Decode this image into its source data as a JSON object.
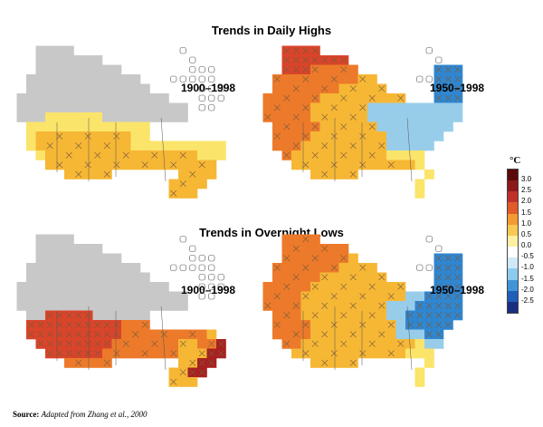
{
  "sections": [
    {
      "title": "Trends in Daily Highs",
      "panels": [
        {
          "period": "1900–1998",
          "grid": [
            "..........................",
            "...gggg...........,.......",
            "...ggggggg.........,......",
            "...ggggggggg.......;;;....",
            "..gggggggggggg...,,;;;....",
            "..ggggggggggggg.....;;;...",
            ".gggggggggggggggg...;;;...",
            ".gggggggggggggggggg.;;....",
            ".gggllllllggggggggg.......",
            "..lllllllllllll...........",
            "..lmmmmmmmmmmll...........",
            "..lmmmmmmmmmmllllllllll...",
            "...lmmmmmmmmmmmmmmmmlll...",
            "....mmmmmmmmmmmmmmmmmm....",
            "......mmmmm.......mmmm....",
            ".................mmmm.....",
            ".................mmm......",
            ".........................."
          ]
        },
        {
          "period": "1950–1998",
          "grid": [
            "..........................",
            "...HHHH...........,.......",
            "...HHHHHHH.........,......",
            "...HHHhhhhh........BBB....",
            "..hhhhhhhhhmm....,,BBB....",
            "..hhhhhhhmmmmm.....BBB....",
            ".hhhhhhmmmmmmmmm...BBB....",
            ".hhhhhmmmmmmbbbbbbbbbb....",
            ".hhhhhmmmmmmbbbbbbbbbb....",
            "..hhhhhmmmmmmbbbbbbbb.....",
            "..hhhhmmmmmmmmbbbbbb......",
            "..hhhmmmmmmmmmbbbbb.......",
            "...hmmmmmmmmmmllll........",
            "....mmmmmmmmmmmmml........",
            "......mmmmm.......l.......",
            ".................l........",
            ".................l........",
            ".........................."
          ]
        }
      ]
    },
    {
      "title": "Trends in Overnight Lows",
      "panels": [
        {
          "period": "1900–1998",
          "grid": [
            "..........................",
            "...gggg...........,.......",
            "...ggggggg.........,......",
            "...ggggggggg.......;;;....",
            "..gggggggggggg...,,;;;....",
            "..ggggggggggggg.....;;;...",
            ".gggggggggggggggg...;;;...",
            ".gggggggggggggggggg.;;....",
            ".gggggggggggggggggg.......",
            "..ggHHHHHgggggg...........",
            "..HHHHHHHHHHhhh...........",
            "..HHHHHHHHHHhhhhhhhhhm....",
            "...HHHHHHHHhhhhhhhmmhhR...",
            "....HHHHHHhhhhhhhhmmmRR...",
            "......hhhhh.......mmRR....",
            ".................mmRR.....",
            ".................mmm......",
            ".........................."
          ]
        },
        {
          "period": "1950–1998",
          "grid": [
            "..........................",
            "...hhhh...........,.......",
            "...hhhhhhh.........,......",
            "...hhhhhhhm........BBB....",
            "..hhhhhhhmmmm....,,BBB....",
            "..hhhhhmmmmmmm.....BBB....",
            ".hhhhhmmmmmmmmmm...BBB....",
            ".hhhhmmmmmmmmmmmbbBBBB....",
            ".hhhhmmmmmmmmmbbbBBBBB....",
            "..hhhmmmmmmmmmbbBBBBBB....",
            "..hhhhmmmmmmmmmbBBBBB.....",
            "..hhhhmmmmmmmmmbbbBB......",
            "...hhmmmmmmmmmmmmlbb......",
            "....mmmmmmmmmmmmlll.......",
            "......mmmmm.......l.......",
            ".................l........",
            ".................l........",
            ".........................."
          ]
        }
      ]
    }
  ],
  "colors": {
    "g": "#c8c8c8",
    "l": "#fbe46a",
    "m": "#f6b735",
    "h": "#ec7a2a",
    "H": "#d9442a",
    "R": "#a82020",
    "b": "#98cdea",
    "B": "#2f86d1",
    "w": "#ffffff",
    "outline": "#555555",
    "hatch": "#7a5a3a"
  },
  "legend": {
    "unit": "°C",
    "labels": [
      "3.0",
      "2.5",
      "2.0",
      "1.5",
      "1.0",
      "0.5",
      "0.0",
      "-0.5",
      "-1.0",
      "-1.5",
      "-2.0",
      "-2.5"
    ],
    "colors": [
      "#5a0a0a",
      "#8b1a1a",
      "#c0302a",
      "#e05a2a",
      "#f39a35",
      "#f8c850",
      "#fdf0a0",
      "#ffffff",
      "#cfe9f7",
      "#8ccbee",
      "#3f95d8",
      "#1f5fb8",
      "#1a2e80"
    ]
  },
  "source": {
    "prefix": "Source:",
    "text": "Adapted from Zhang et al., 2000"
  }
}
